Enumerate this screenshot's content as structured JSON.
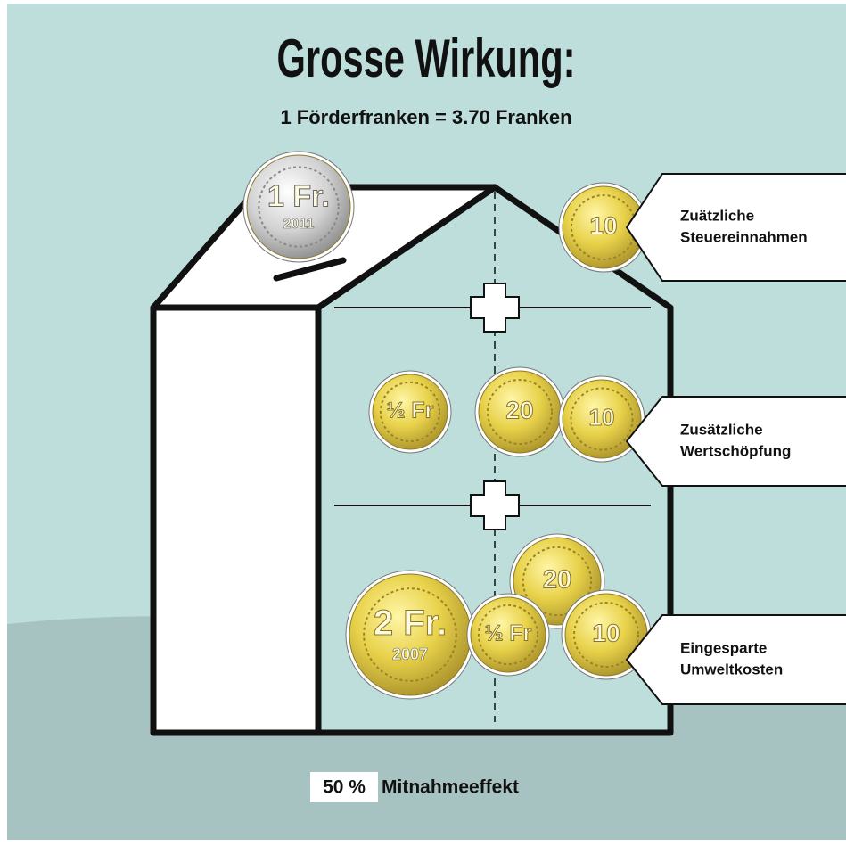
{
  "header": {
    "title": "Grosse Wirkung:",
    "subtitle": "1 Förderfranken = 3.70 Franken"
  },
  "labels": [
    {
      "lines": [
        "Zuätzliche",
        "Steuereinnahmen"
      ]
    },
    {
      "lines": [
        "Zusätzliche",
        "Wertschöpfung"
      ]
    },
    {
      "lines": [
        "Eingesparte",
        "Umweltkosten"
      ]
    }
  ],
  "coins": [
    {
      "label": "1 Fr.",
      "year": "2011"
    },
    {
      "label": "10"
    },
    {
      "label": "½ Fr"
    },
    {
      "label": "20"
    },
    {
      "label": "10"
    },
    {
      "label": "20"
    },
    {
      "label": "2 Fr.",
      "year": "2007"
    },
    {
      "label": "½ Fr"
    },
    {
      "label": "10"
    }
  ],
  "footer": {
    "highlight": "50 %",
    "text": "Mitnahmeeffekt"
  }
}
